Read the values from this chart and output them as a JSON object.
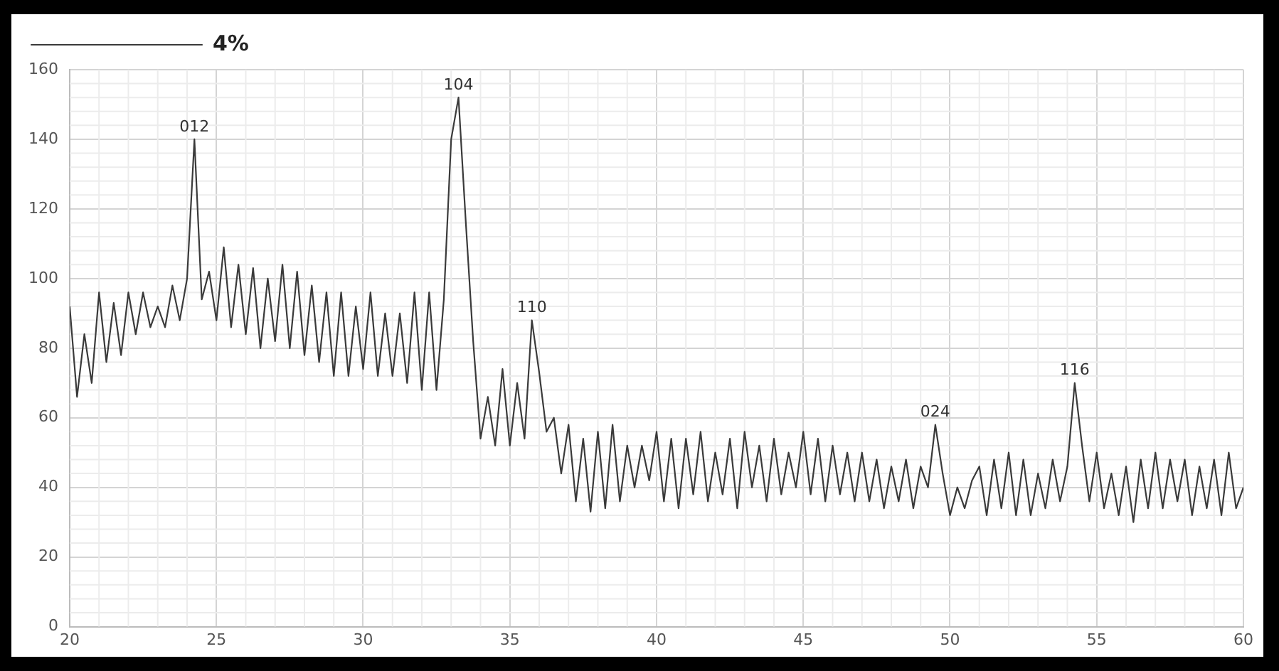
{
  "chart_data": {
    "type": "line",
    "legend": "top left",
    "grid": true,
    "marker": "none",
    "line_style": "solid",
    "xlim": [
      20,
      60
    ],
    "xticks": [
      20,
      25,
      30,
      35,
      40,
      45,
      50,
      55,
      60
    ],
    "ylim": [
      0,
      160
    ],
    "yticks": [
      0,
      20,
      40,
      60,
      80,
      100,
      120,
      140,
      160
    ],
    "annotations": [
      {
        "text": "012",
        "x": 24.25,
        "y": 140
      },
      {
        "text": "104",
        "x": 33.25,
        "y": 152
      },
      {
        "text": "110",
        "x": 35.75,
        "y": 88
      },
      {
        "text": "024",
        "x": 49.5,
        "y": 58
      },
      {
        "text": "116",
        "x": 54.25,
        "y": 70
      }
    ],
    "x": [
      20,
      20.25,
      20.5,
      20.75,
      21,
      21.25,
      21.5,
      21.75,
      22,
      22.25,
      22.5,
      22.75,
      23,
      23.25,
      23.5,
      23.75,
      24,
      24.25,
      24.5,
      24.75,
      25,
      25.25,
      25.5,
      25.75,
      26,
      26.25,
      26.5,
      26.75,
      27,
      27.25,
      27.5,
      27.75,
      28,
      28.25,
      28.5,
      28.75,
      29,
      29.25,
      29.5,
      29.75,
      30,
      30.25,
      30.5,
      30.75,
      31,
      31.25,
      31.5,
      31.75,
      32,
      32.25,
      32.5,
      32.75,
      33,
      33.25,
      33.5,
      33.75,
      34,
      34.25,
      34.5,
      34.75,
      35,
      35.25,
      35.5,
      35.75,
      36,
      36.25,
      36.5,
      36.75,
      37,
      37.25,
      37.5,
      37.75,
      38,
      38.25,
      38.5,
      38.75,
      39,
      39.25,
      39.5,
      39.75,
      40,
      40.25,
      40.5,
      40.75,
      41,
      41.25,
      41.5,
      41.75,
      42,
      42.25,
      42.5,
      42.75,
      43,
      43.25,
      43.5,
      43.75,
      44,
      44.25,
      44.5,
      44.75,
      45,
      45.25,
      45.5,
      45.75,
      46,
      46.25,
      46.5,
      46.75,
      47,
      47.25,
      47.5,
      47.75,
      48,
      48.25,
      48.5,
      48.75,
      49,
      49.25,
      49.5,
      49.75,
      50,
      50.25,
      50.5,
      50.75,
      51,
      51.25,
      51.5,
      51.75,
      52,
      52.25,
      52.5,
      52.75,
      53,
      53.25,
      53.5,
      53.75,
      54,
      54.25,
      54.5,
      54.75,
      55,
      55.25,
      55.5,
      55.75,
      56,
      56.25,
      56.5,
      56.75,
      57,
      57.25,
      57.5,
      57.75,
      58,
      58.25,
      58.5,
      58.75,
      59,
      59.25,
      59.5,
      59.75,
      60
    ],
    "series": [
      {
        "name": "4%",
        "color": "#3a3a3a",
        "values": [
          92,
          66,
          84,
          70,
          96,
          76,
          93,
          78,
          96,
          84,
          96,
          86,
          92,
          86,
          98,
          88,
          100,
          140,
          94,
          102,
          88,
          109,
          86,
          104,
          84,
          103,
          80,
          100,
          82,
          104,
          80,
          102,
          78,
          98,
          76,
          96,
          72,
          96,
          72,
          92,
          74,
          96,
          72,
          90,
          72,
          90,
          70,
          96,
          68,
          96,
          68,
          94,
          140,
          152,
          116,
          82,
          54,
          66,
          52,
          74,
          52,
          70,
          54,
          88,
          73,
          56,
          60,
          44,
          58,
          36,
          54,
          33,
          56,
          34,
          58,
          36,
          52,
          40,
          52,
          42,
          56,
          36,
          54,
          34,
          54,
          38,
          56,
          36,
          50,
          38,
          54,
          34,
          56,
          40,
          52,
          36,
          54,
          38,
          50,
          40,
          56,
          38,
          54,
          36,
          52,
          38,
          50,
          36,
          50,
          36,
          48,
          34,
          46,
          36,
          48,
          34,
          46,
          40,
          58,
          44,
          32,
          40,
          34,
          42,
          46,
          32,
          48,
          34,
          50,
          32,
          48,
          32,
          44,
          34,
          48,
          36,
          46,
          70,
          52,
          36,
          50,
          34,
          44,
          32,
          46,
          30,
          48,
          34,
          50,
          34,
          48,
          36,
          48,
          32,
          46,
          34,
          48,
          32,
          50,
          34,
          40
        ]
      }
    ]
  }
}
